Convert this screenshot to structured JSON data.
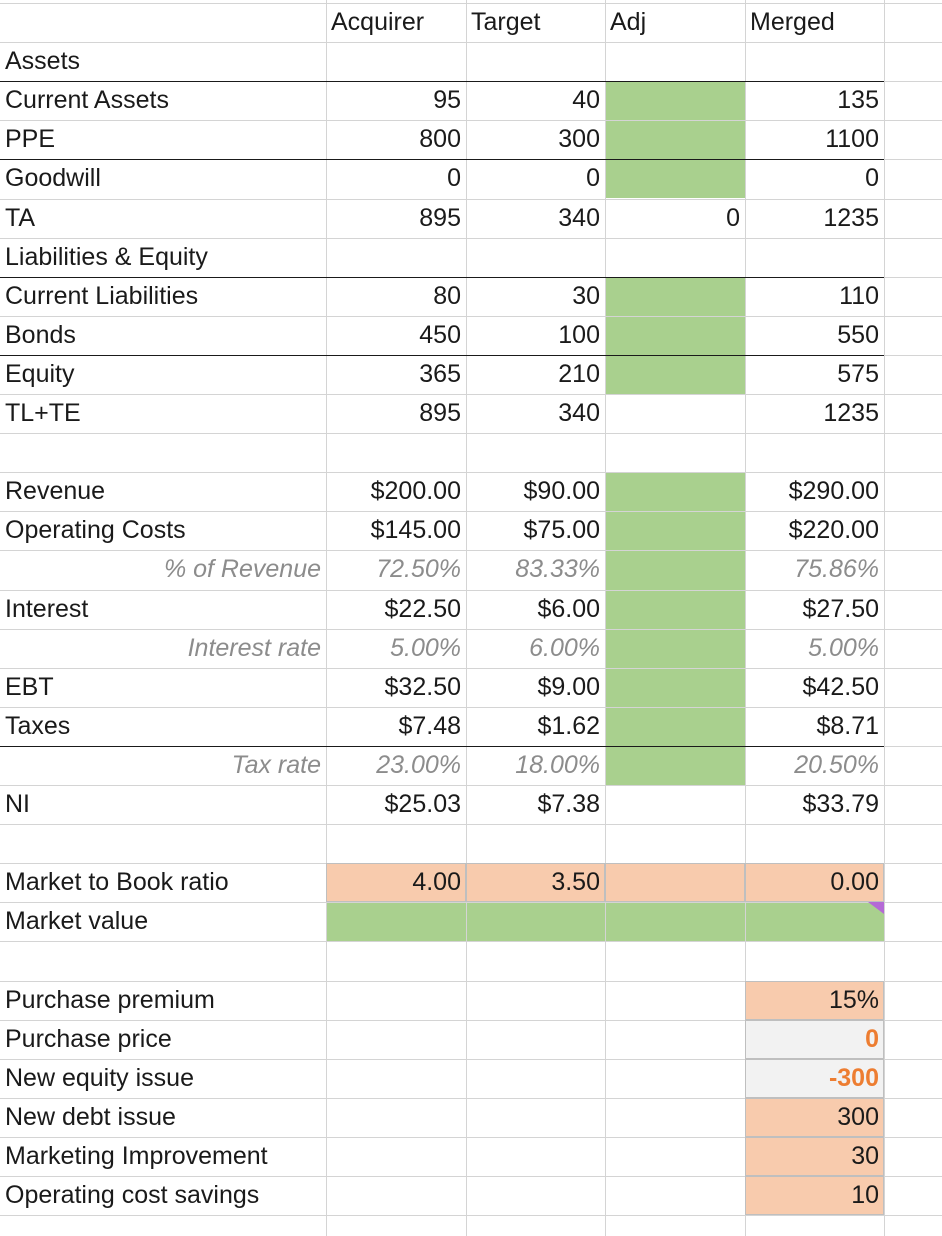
{
  "headers": [
    "",
    "Acquirer",
    "Target",
    "Adj",
    "Merged"
  ],
  "rows": [
    {
      "label": "Assets",
      "values": [
        "",
        "",
        "",
        ""
      ]
    },
    {
      "label": "Current Assets",
      "values": [
        "95",
        "40",
        "",
        "135"
      ]
    },
    {
      "label": "PPE",
      "values": [
        "800",
        "300",
        "",
        "1100"
      ]
    },
    {
      "label": "Goodwill",
      "values": [
        "0",
        "0",
        "",
        "0"
      ]
    },
    {
      "label": "TA",
      "values": [
        "895",
        "340",
        "0",
        "1235"
      ]
    },
    {
      "label": "Liabilities & Equity",
      "values": [
        "",
        "",
        "",
        ""
      ]
    },
    {
      "label": "Current Liabilities",
      "values": [
        "80",
        "30",
        "",
        "110"
      ]
    },
    {
      "label": "Bonds",
      "values": [
        "450",
        "100",
        "",
        "550"
      ]
    },
    {
      "label": "Equity",
      "values": [
        "365",
        "210",
        "",
        "575"
      ]
    },
    {
      "label": "TL+TE",
      "values": [
        "895",
        "340",
        "",
        "1235"
      ]
    },
    {
      "label": "",
      "values": [
        "",
        "",
        "",
        ""
      ]
    },
    {
      "label": "Revenue",
      "values": [
        "$200.00",
        "$90.00",
        "",
        "$290.00"
      ]
    },
    {
      "label": "Operating Costs",
      "values": [
        "$145.00",
        "$75.00",
        "",
        "$220.00"
      ]
    },
    {
      "label": "% of Revenue",
      "values": [
        "72.50%",
        "83.33%",
        "",
        "75.86%"
      ]
    },
    {
      "label": "Interest",
      "values": [
        "$22.50",
        "$6.00",
        "",
        "$27.50"
      ]
    },
    {
      "label": "Interest rate",
      "values": [
        "5.00%",
        "6.00%",
        "",
        "5.00%"
      ]
    },
    {
      "label": "EBT",
      "values": [
        "$32.50",
        "$9.00",
        "",
        "$42.50"
      ]
    },
    {
      "label": "Taxes",
      "values": [
        "$7.48",
        "$1.62",
        "",
        "$8.71"
      ]
    },
    {
      "label": "Tax rate",
      "values": [
        "23.00%",
        "18.00%",
        "",
        "20.50%"
      ]
    },
    {
      "label": "NI",
      "values": [
        "$25.03",
        "$7.38",
        "",
        "$33.79"
      ]
    },
    {
      "label": "",
      "values": [
        "",
        "",
        "",
        ""
      ]
    },
    {
      "label": "Market to Book ratio",
      "values": [
        "4.00",
        "3.50",
        "",
        "0.00"
      ]
    },
    {
      "label": "Market value",
      "values": [
        "",
        "",
        "",
        ""
      ]
    },
    {
      "label": "",
      "values": [
        "",
        "",
        "",
        ""
      ]
    },
    {
      "label": "Purchase premium",
      "values": [
        "",
        "",
        "",
        "15%"
      ]
    },
    {
      "label": "Purchase price",
      "values": [
        "",
        "",
        "",
        "0"
      ]
    },
    {
      "label": "New equity issue",
      "values": [
        "",
        "",
        "",
        "-300"
      ]
    },
    {
      "label": "New debt issue",
      "values": [
        "",
        "",
        "",
        "300"
      ]
    },
    {
      "label": "Marketing Improvement",
      "values": [
        "",
        "",
        "",
        "30"
      ]
    },
    {
      "label": "Operating cost savings",
      "values": [
        "",
        "",
        "",
        "10"
      ]
    }
  ],
  "colors": {
    "adjustment_fill": "#a9d08e",
    "input_fill": "#f8cbad",
    "calc_fill": "#f2f2f2",
    "warning_text": "#ed7d31",
    "comment_indicator": "#b469d6"
  }
}
